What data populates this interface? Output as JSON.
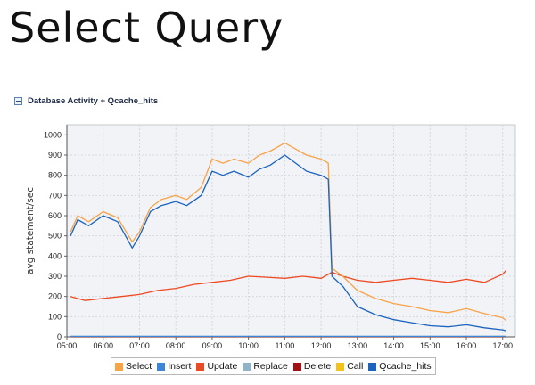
{
  "slide": {
    "title": "Select Query"
  },
  "panel": {
    "title": "Database Activity + Qcache_hits"
  },
  "colors": {
    "plot_bg": "#f2f3f7",
    "grid": "#d6d8de",
    "select": "#f7a346",
    "insert": "#3b86d6",
    "update": "#ee4a21",
    "replace": "#8fb4c9",
    "delete": "#a31212",
    "call": "#f2c21a",
    "qcache_hits": "#1a63bf"
  },
  "chart_data": {
    "type": "line",
    "ylabel": "avg statement/sec",
    "xlabel": "",
    "ylim": [
      0,
      1050
    ],
    "xlim": [
      5.0,
      17.35
    ],
    "grid": true,
    "legend_position": "bottom",
    "y_ticks": [
      "0",
      "100",
      "200",
      "300",
      "400",
      "500",
      "600",
      "700",
      "800",
      "900",
      "1000"
    ],
    "x_ticks": [
      "05:00",
      "06:00",
      "07:00",
      "08:00",
      "09:00",
      "10:00",
      "11:00",
      "12:00",
      "13:00",
      "14:00",
      "15:00",
      "16:00",
      "17:00"
    ],
    "series": [
      {
        "name": "Select",
        "key": "select",
        "x": [
          5.1,
          5.3,
          5.6,
          6.0,
          6.4,
          6.8,
          7.0,
          7.3,
          7.6,
          8.0,
          8.3,
          8.7,
          9.0,
          9.3,
          9.6,
          10.0,
          10.3,
          10.6,
          11.0,
          11.3,
          11.6,
          12.0,
          12.2,
          12.3,
          12.6,
          13.0,
          13.5,
          14.0,
          14.5,
          15.0,
          15.5,
          16.0,
          16.5,
          17.0,
          17.1
        ],
        "y": [
          520,
          600,
          570,
          620,
          590,
          470,
          520,
          640,
          680,
          700,
          680,
          740,
          880,
          860,
          880,
          860,
          900,
          920,
          960,
          930,
          900,
          880,
          860,
          340,
          300,
          230,
          190,
          165,
          150,
          130,
          120,
          140,
          115,
          95,
          80
        ]
      },
      {
        "name": "Insert",
        "key": "insert",
        "x": [
          5.1,
          17.1
        ],
        "y": [
          2,
          2
        ]
      },
      {
        "name": "Update",
        "key": "update",
        "x": [
          5.1,
          5.5,
          6.0,
          6.5,
          7.0,
          7.5,
          8.0,
          8.5,
          9.0,
          9.5,
          10.0,
          10.5,
          11.0,
          11.5,
          12.0,
          12.3,
          12.6,
          13.0,
          13.5,
          14.0,
          14.5,
          15.0,
          15.5,
          16.0,
          16.5,
          17.0,
          17.1
        ],
        "y": [
          200,
          180,
          190,
          200,
          210,
          230,
          240,
          260,
          270,
          280,
          300,
          295,
          290,
          300,
          290,
          320,
          300,
          280,
          270,
          280,
          290,
          280,
          270,
          285,
          270,
          310,
          330
        ]
      },
      {
        "name": "Replace",
        "key": "replace",
        "x": [
          5.1,
          17.1
        ],
        "y": [
          3,
          3
        ]
      },
      {
        "name": "Delete",
        "key": "delete",
        "x": [
          5.1,
          17.1
        ],
        "y": [
          1,
          1
        ]
      },
      {
        "name": "Call",
        "key": "call",
        "x": [
          5.1,
          17.1
        ],
        "y": [
          0,
          0
        ]
      },
      {
        "name": "Qcache_hits",
        "key": "qcache_hits",
        "x": [
          5.1,
          5.3,
          5.6,
          6.0,
          6.4,
          6.8,
          7.0,
          7.3,
          7.6,
          8.0,
          8.3,
          8.7,
          9.0,
          9.3,
          9.6,
          10.0,
          10.3,
          10.6,
          11.0,
          11.3,
          11.6,
          12.0,
          12.2,
          12.3,
          12.6,
          13.0,
          13.5,
          14.0,
          14.5,
          15.0,
          15.5,
          16.0,
          16.5,
          17.0,
          17.1
        ],
        "y": [
          500,
          580,
          550,
          600,
          570,
          440,
          500,
          620,
          650,
          670,
          650,
          700,
          820,
          800,
          820,
          790,
          830,
          850,
          900,
          860,
          820,
          800,
          780,
          300,
          250,
          150,
          110,
          85,
          70,
          55,
          50,
          60,
          45,
          35,
          30
        ]
      }
    ]
  }
}
